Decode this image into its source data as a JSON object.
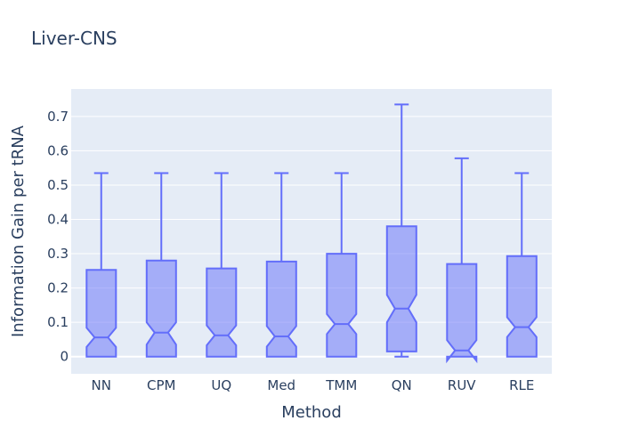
{
  "chart_data": {
    "type": "box",
    "title": "Liver-CNS",
    "xlabel": "Method",
    "ylabel": "Information Gain per tRNA",
    "ylim": [
      -0.05,
      0.78
    ],
    "yticks": [
      0,
      0.1,
      0.2,
      0.3,
      0.4,
      0.5,
      0.6,
      0.7
    ],
    "ytick_labels": [
      "0",
      "0.1",
      "0.2",
      "0.3",
      "0.4",
      "0.5",
      "0.6",
      "0.7"
    ],
    "grid": true,
    "notched": true,
    "colors": {
      "line": "#636efa",
      "fill": "#636efa",
      "plot_bg": "#e5ecf6",
      "grid": "#ffffff",
      "text": "#2a3f5f"
    },
    "categories": [
      "NN",
      "CPM",
      "UQ",
      "Med",
      "TMM",
      "QN",
      "RUV",
      "RLE"
    ],
    "boxes": [
      {
        "name": "NN",
        "min": 0,
        "q1": 0,
        "median": 0.056,
        "q3": 0.253,
        "max": 0.535,
        "notch_low": 0.028,
        "notch_high": 0.084
      },
      {
        "name": "CPM",
        "min": 0,
        "q1": 0,
        "median": 0.07,
        "q3": 0.28,
        "max": 0.535,
        "notch_low": 0.035,
        "notch_high": 0.1
      },
      {
        "name": "UQ",
        "min": 0,
        "q1": 0,
        "median": 0.062,
        "q3": 0.257,
        "max": 0.535,
        "notch_low": 0.033,
        "notch_high": 0.091
      },
      {
        "name": "Med",
        "min": 0,
        "q1": 0,
        "median": 0.059,
        "q3": 0.277,
        "max": 0.535,
        "notch_low": 0.029,
        "notch_high": 0.089
      },
      {
        "name": "TMM",
        "min": 0,
        "q1": 0,
        "median": 0.095,
        "q3": 0.3,
        "max": 0.535,
        "notch_low": 0.066,
        "notch_high": 0.124
      },
      {
        "name": "QN",
        "min": 0,
        "q1": 0.015,
        "median": 0.14,
        "q3": 0.38,
        "max": 0.735,
        "notch_low": 0.1,
        "notch_high": 0.18
      },
      {
        "name": "RUV",
        "min": 0,
        "q1": 0,
        "median": 0.018,
        "q3": 0.27,
        "max": 0.578,
        "notch_low": -0.012,
        "notch_high": 0.048
      },
      {
        "name": "RLE",
        "min": 0,
        "q1": 0,
        "median": 0.086,
        "q3": 0.293,
        "max": 0.535,
        "notch_low": 0.057,
        "notch_high": 0.115
      }
    ]
  }
}
